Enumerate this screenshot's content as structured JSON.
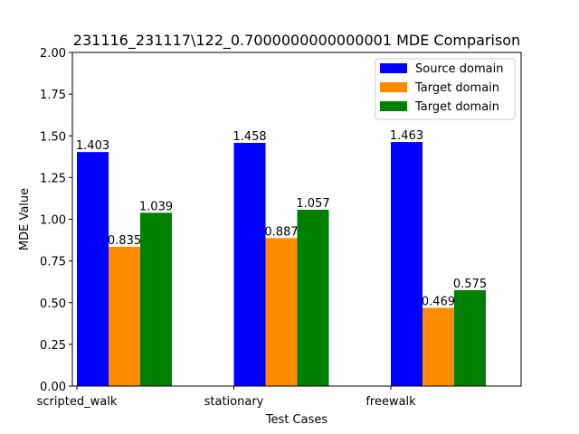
{
  "chart_data": {
    "type": "bar",
    "title": "231116_231117\\122_0.7000000000000001 MDE Comparison",
    "xlabel": "Test Cases",
    "ylabel": "MDE Value",
    "ylim": [
      0,
      2.0
    ],
    "yticks": [
      "0.00",
      "0.25",
      "0.50",
      "0.75",
      "1.00",
      "1.25",
      "1.50",
      "1.75",
      "2.00"
    ],
    "categories": [
      "scripted_walk",
      "stationary",
      "freewalk"
    ],
    "series": [
      {
        "name": "Source domain",
        "color": "#0000ff",
        "values": [
          1.403,
          1.458,
          1.463
        ],
        "labels": [
          "1.403",
          "1.458",
          "1.463"
        ]
      },
      {
        "name": "Target domain",
        "color": "#ff8c00",
        "values": [
          0.835,
          0.887,
          0.469
        ],
        "labels": [
          "0.835",
          "0.887",
          "0.469"
        ]
      },
      {
        "name": "Target domain",
        "color": "#008000",
        "values": [
          1.039,
          1.057,
          0.575
        ],
        "labels": [
          "1.039",
          "1.057",
          "0.575"
        ]
      }
    ],
    "legend_position": "top-right",
    "grid": false
  }
}
